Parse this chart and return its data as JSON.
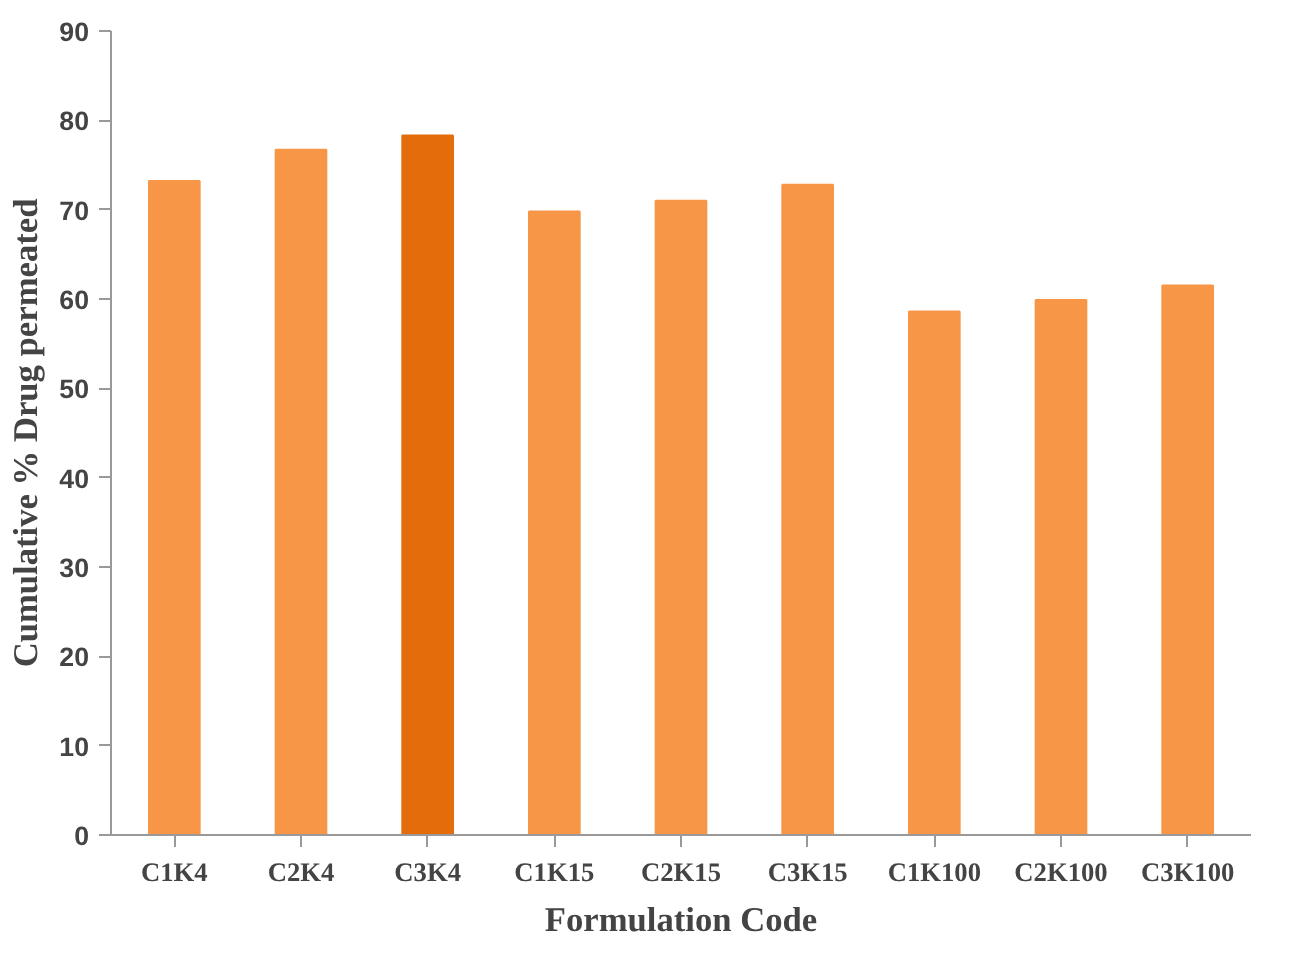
{
  "chart_data": {
    "type": "bar",
    "xlabel": "Formulation Code",
    "ylabel": "Cumulative % Drug permeated",
    "categories": [
      "C1K4",
      "C2K4",
      "C3K4",
      "C1K15",
      "C2K15",
      "C3K15",
      "C1K100",
      "C2K100",
      "C3K100"
    ],
    "values": [
      73.2,
      76.7,
      78.3,
      69.8,
      71.0,
      72.8,
      58.6,
      59.9,
      61.5
    ],
    "colors": [
      "#f79646",
      "#f79646",
      "#e46c0a",
      "#f79646",
      "#f79646",
      "#f79646",
      "#f79646",
      "#f79646",
      "#f79646"
    ],
    "ylim": [
      0,
      90
    ],
    "yticks": [
      0,
      10,
      20,
      30,
      40,
      50,
      60,
      70,
      80,
      90
    ],
    "grid": false
  }
}
